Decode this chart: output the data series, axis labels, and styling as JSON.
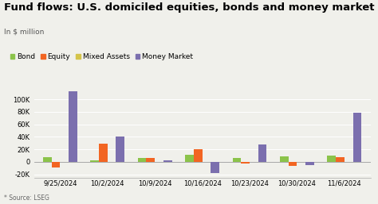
{
  "title": "Fund flows: U.S. domiciled equities, bonds and money market funds",
  "subtitle": "In $ million",
  "source": "* Source: LSEG",
  "categories": [
    "9/25/2024",
    "10/2/2024",
    "10/9/2024",
    "10/16/2024",
    "10/23/2024",
    "10/30/2024",
    "11/6/2024"
  ],
  "series": {
    "Bond": {
      "color": "#8bc34a",
      "values": [
        8000,
        3000,
        6000,
        11000,
        6000,
        9000,
        10000
      ]
    },
    "Equity": {
      "color": "#f26522",
      "values": [
        -9000,
        29000,
        6000,
        20000,
        -3000,
        -6000,
        7000
      ]
    },
    "Mixed Assets": {
      "color": "#d4c44a",
      "values": [
        0,
        0,
        0,
        0,
        0,
        0,
        0
      ]
    },
    "Money Market": {
      "color": "#7b6fae",
      "values": [
        113000,
        40000,
        3000,
        -18000,
        28000,
        -5000,
        79000
      ]
    }
  },
  "ylim": [
    -25000,
    122000
  ],
  "yticks": [
    -20000,
    0,
    20000,
    40000,
    60000,
    80000,
    100000
  ],
  "ytick_labels": [
    "-20K",
    "0",
    "20K",
    "40K",
    "60K",
    "80K",
    "100K"
  ],
  "background_color": "#f0f0eb",
  "bar_width": 0.18,
  "title_fontsize": 9.5,
  "subtitle_fontsize": 6.5,
  "tick_fontsize": 6,
  "legend_fontsize": 6.5
}
